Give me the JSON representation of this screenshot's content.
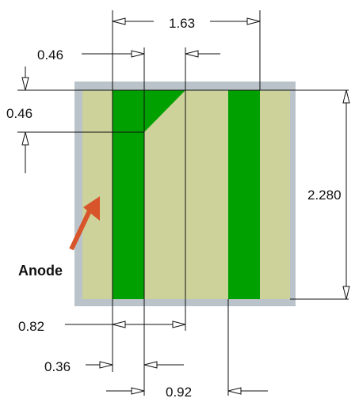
{
  "dimensions": {
    "total_width": "1.63",
    "top_offset": "0.46",
    "left_offset": "0.46",
    "height": "2.280",
    "stripe_gap": "0.82",
    "first_stripe_width": "0.36",
    "right_spacing": "0.92"
  },
  "callout": {
    "label": "Anode"
  },
  "colors": {
    "frame": "#b9c3c9",
    "body": "#cdd29b",
    "stripe": "#00a000",
    "arrow": "#d8542a",
    "line": "#111111"
  }
}
